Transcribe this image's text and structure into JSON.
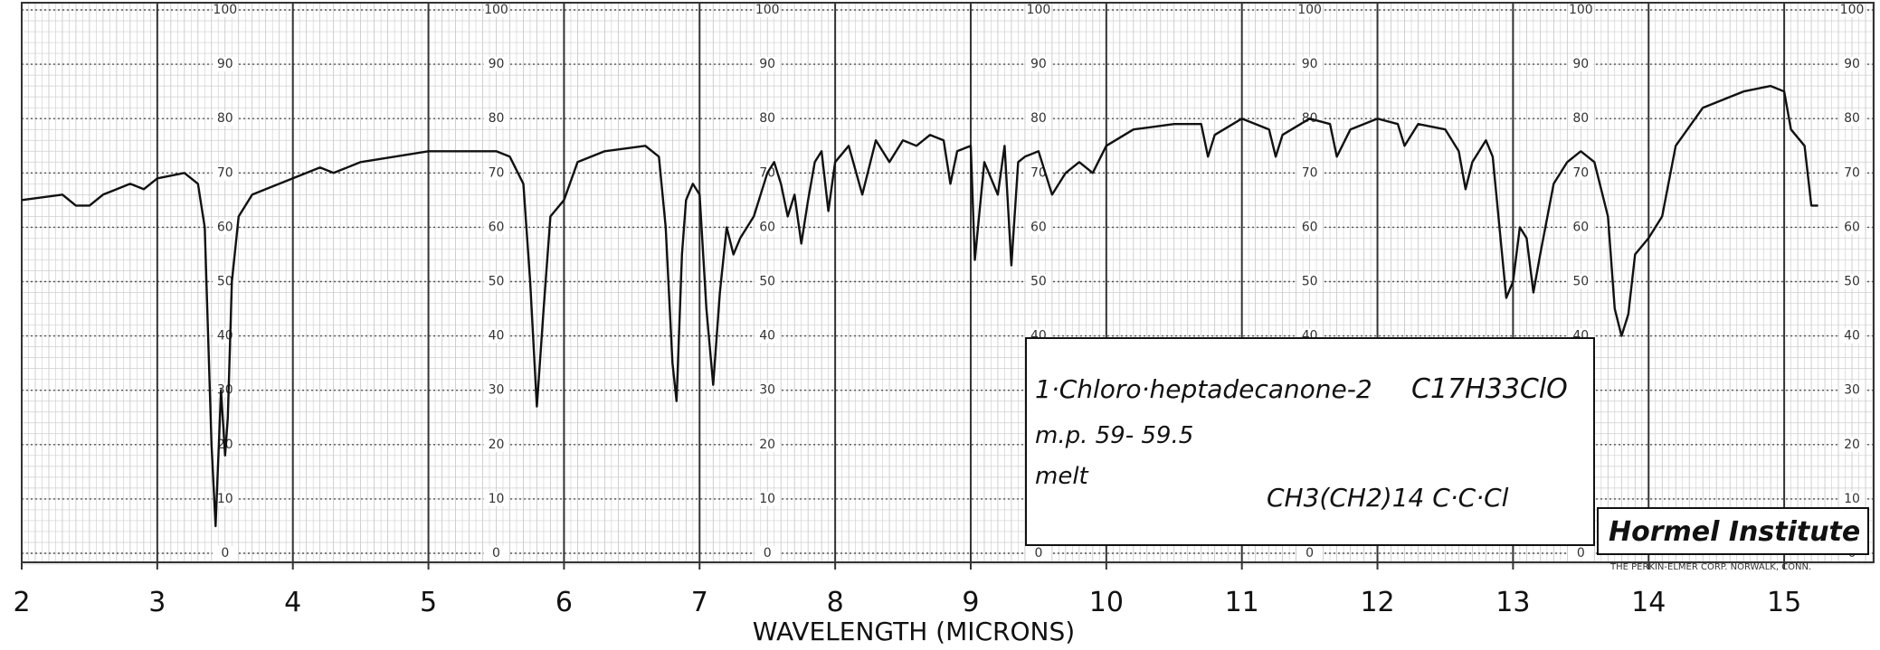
{
  "chart_data": {
    "type": "line",
    "x_label": "WAVELENGTH (MICRONS)",
    "annotations": {
      "compound": "1·Chloro·heptadecanone-2",
      "formula": "C17H33ClO",
      "melting_point": "m.p. 59- 59.5",
      "state": "melt",
      "structure": "CH3(CH2)14 C·C·Cl",
      "institute": "Hormel Institute",
      "maker": "THE PERKIN-ELMER CORP. NORWALK, CONN."
    },
    "xlim": [
      2,
      15.66
    ],
    "ylim": [
      0,
      100
    ],
    "xticks": [
      2,
      3,
      4,
      5,
      6,
      7,
      8,
      9,
      10,
      11,
      12,
      13,
      14,
      15
    ],
    "yticks": [
      0,
      10,
      20,
      30,
      40,
      50,
      60,
      70,
      80,
      90,
      100
    ],
    "grid": true,
    "color": "#111111",
    "x": [
      2.0,
      2.3,
      2.4,
      2.5,
      2.6,
      2.8,
      2.9,
      3.0,
      3.2,
      3.3,
      3.35,
      3.4,
      3.43,
      3.47,
      3.5,
      3.52,
      3.55,
      3.6,
      3.7,
      3.8,
      4.0,
      4.2,
      4.3,
      4.5,
      5.0,
      5.5,
      5.6,
      5.7,
      5.75,
      5.8,
      5.85,
      5.9,
      6.0,
      6.1,
      6.3,
      6.6,
      6.7,
      6.75,
      6.8,
      6.83,
      6.87,
      6.9,
      6.95,
      7.0,
      7.05,
      7.1,
      7.15,
      7.2,
      7.25,
      7.3,
      7.4,
      7.5,
      7.55,
      7.6,
      7.65,
      7.7,
      7.75,
      7.8,
      7.85,
      7.9,
      7.95,
      8.0,
      8.1,
      8.2,
      8.3,
      8.4,
      8.5,
      8.6,
      8.7,
      8.8,
      8.85,
      8.9,
      9.0,
      9.03,
      9.1,
      9.2,
      9.25,
      9.3,
      9.35,
      9.4,
      9.5,
      9.6,
      9.7,
      9.8,
      9.9,
      10.0,
      10.2,
      10.5,
      10.7,
      10.75,
      10.8,
      11.0,
      11.2,
      11.25,
      11.3,
      11.5,
      11.65,
      11.7,
      11.8,
      12.0,
      12.15,
      12.2,
      12.3,
      12.5,
      12.6,
      12.65,
      12.7,
      12.8,
      12.85,
      12.9,
      12.95,
      13.0,
      13.05,
      13.1,
      13.15,
      13.2,
      13.3,
      13.4,
      13.5,
      13.6,
      13.7,
      13.75,
      13.8,
      13.85,
      13.9,
      14.0,
      14.1,
      14.2,
      14.4,
      14.7,
      14.9,
      15.0,
      15.05,
      15.15,
      15.2,
      15.25
    ],
    "values": [
      65,
      66,
      64,
      64,
      66,
      68,
      67,
      69,
      70,
      68,
      60,
      20,
      5,
      30,
      18,
      25,
      50,
      62,
      66,
      67,
      69,
      71,
      70,
      72,
      74,
      74,
      73,
      68,
      50,
      27,
      45,
      62,
      65,
      72,
      74,
      75,
      73,
      60,
      35,
      28,
      55,
      65,
      68,
      66,
      45,
      31,
      48,
      60,
      55,
      58,
      62,
      70,
      72,
      68,
      62,
      66,
      57,
      65,
      72,
      74,
      63,
      72,
      75,
      66,
      76,
      72,
      76,
      75,
      77,
      76,
      68,
      74,
      75,
      54,
      72,
      66,
      75,
      53,
      72,
      73,
      74,
      66,
      70,
      72,
      70,
      75,
      78,
      79,
      79,
      73,
      77,
      80,
      78,
      73,
      77,
      80,
      79,
      73,
      78,
      80,
      79,
      75,
      79,
      78,
      74,
      67,
      72,
      76,
      73,
      60,
      47,
      50,
      60,
      58,
      48,
      55,
      68,
      72,
      74,
      72,
      62,
      45,
      40,
      44,
      55,
      58,
      62,
      75,
      82,
      85,
      86,
      85,
      78,
      75,
      64,
      64
    ]
  }
}
